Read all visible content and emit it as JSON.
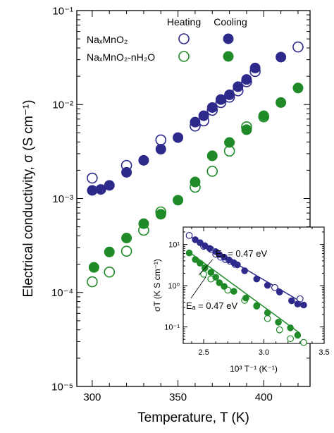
{
  "colors": {
    "na": "#2e2a8c",
    "hyd": "#1e8a28",
    "axis": "#000000"
  },
  "chart_data": [
    {
      "type": "scatter",
      "title": "",
      "xlabel": "Temperature, T (K)",
      "ylabel": "Electrical conductivity, σ (S cm⁻¹)",
      "xlim": [
        291,
        427
      ],
      "ylim_log10": [
        -5,
        -1
      ],
      "log_y": true,
      "x_ticks": [
        300,
        350,
        400
      ],
      "y_ticks": [
        {
          "exp": -5,
          "label": "10⁻⁵"
        },
        {
          "exp": -4,
          "label": "10⁻⁴"
        },
        {
          "exp": -3,
          "label": "10⁻³"
        },
        {
          "exp": -2,
          "label": "10⁻²"
        },
        {
          "exp": -1,
          "label": "10⁻¹"
        }
      ],
      "legend": {
        "placement": "top-left",
        "col_heating": "Heating",
        "col_cooling": "Cooling",
        "row1": "NaₓMnO₂",
        "row2": "NaₓMnO₂-nH₂O"
      },
      "series": [
        {
          "name": "NaₓMnO₂ Heating",
          "color": "na",
          "filled": false,
          "points": [
            [
              300,
              0.00165
            ],
            [
              320,
              0.00225
            ],
            [
              340,
              0.0042
            ],
            [
              360,
              0.0059
            ],
            [
              365,
              0.0067
            ],
            [
              370,
              0.0087
            ],
            [
              375,
              0.0105
            ],
            [
              380,
              0.012
            ],
            [
              385,
              0.014
            ],
            [
              390,
              0.0175
            ],
            [
              395,
              0.0225
            ],
            [
              420,
              0.041
            ]
          ]
        },
        {
          "name": "NaₓMnO₂ Cooling",
          "color": "na",
          "filled": true,
          "points": [
            [
              300,
              0.00122
            ],
            [
              305,
              0.00125
            ],
            [
              310,
              0.00138
            ],
            [
              320,
              0.0019
            ],
            [
              330,
              0.00255
            ],
            [
              340,
              0.00335
            ],
            [
              350,
              0.00445
            ],
            [
              360,
              0.0065
            ],
            [
              365,
              0.0076
            ],
            [
              370,
              0.0093
            ],
            [
              375,
              0.0113
            ],
            [
              380,
              0.0127
            ],
            [
              385,
              0.0155
            ],
            [
              390,
              0.0185
            ],
            [
              395,
              0.0245
            ],
            [
              410,
              0.032
            ]
          ]
        },
        {
          "name": "NaₓMnO₂-nH₂O Heating",
          "color": "hyd",
          "filled": false,
          "points": [
            [
              300,
              0.00013
            ],
            [
              310,
              0.000165
            ],
            [
              320,
              0.000275
            ],
            [
              330,
              0.00046
            ],
            [
              340,
              0.00072
            ],
            [
              360,
              0.00132
            ],
            [
              370,
              0.00195
            ],
            [
              380,
              0.0032
            ],
            [
              390,
              0.0058
            ],
            [
              400,
              0.0074
            ]
          ]
        },
        {
          "name": "NaₓMnO₂-nH₂O Cooling",
          "color": "hyd",
          "filled": true,
          "points": [
            [
              301,
              0.000185
            ],
            [
              310,
              0.00027
            ],
            [
              320,
              0.00038
            ],
            [
              330,
              0.00054
            ],
            [
              340,
              0.00068
            ],
            [
              350,
              0.00096
            ],
            [
              360,
              0.0015
            ],
            [
              370,
              0.00285
            ],
            [
              380,
              0.00395
            ],
            [
              390,
              0.0054
            ],
            [
              400,
              0.0076
            ],
            [
              410,
              0.0105
            ],
            [
              420,
              0.015
            ]
          ]
        }
      ]
    },
    {
      "type": "scatter",
      "title": "",
      "xlabel": "10³ T⁻¹ (K⁻¹)",
      "ylabel": "σT (K S cm⁻¹)",
      "xlim": [
        2.33,
        3.5
      ],
      "ylim_log10": [
        -1.4,
        1.42
      ],
      "log_y": true,
      "x_ticks": [
        2.5,
        3.0,
        3.5
      ],
      "x_tick_labels": [
        "2.5",
        "3.0",
        "3.5"
      ],
      "y_ticks": [
        {
          "exp": -1,
          "label": "10⁻¹"
        },
        {
          "exp": 0,
          "label": "10⁰"
        },
        {
          "exp": 1,
          "label": "10¹"
        }
      ],
      "annotations": [
        "Eₐ = 0.47 eV",
        "Eₐ = 0.47 eV"
      ],
      "fits": [
        {
          "color": "na",
          "x": [
            2.38,
            3.3
          ],
          "y": [
            16,
            0.42
          ]
        },
        {
          "color": "hyd",
          "x": [
            2.38,
            3.3
          ],
          "y": [
            6.5,
            0.07
          ]
        }
      ],
      "series": [
        {
          "name": "NaₓMnO₂ Heating",
          "color": "na",
          "filled": false,
          "points": [
            [
              2.38,
              16.5
            ],
            [
              2.5,
              9.0
            ],
            [
              2.56,
              7.6
            ],
            [
              2.6,
              5.8
            ],
            [
              2.64,
              4.9
            ],
            [
              2.68,
              4.3
            ],
            [
              2.72,
              3.9
            ],
            [
              2.76,
              3.3
            ],
            [
              3.09,
              0.9
            ],
            [
              3.3,
              0.48
            ]
          ]
        },
        {
          "name": "NaₓMnO₂ Cooling",
          "color": "na",
          "filled": true,
          "points": [
            [
              2.43,
              13.0
            ],
            [
              2.47,
              11.0
            ],
            [
              2.51,
              9.3
            ],
            [
              2.55,
              8.0
            ],
            [
              2.6,
              6.7
            ],
            [
              2.63,
              5.7
            ],
            [
              2.67,
              4.9
            ],
            [
              2.71,
              4.2
            ],
            [
              2.75,
              3.6
            ],
            [
              2.78,
              3.2
            ],
            [
              2.84,
              2.3
            ],
            [
              2.94,
              1.45
            ],
            [
              3.03,
              1.02
            ],
            [
              3.13,
              0.7
            ],
            [
              3.23,
              0.43
            ],
            [
              3.28,
              0.36
            ],
            [
              3.33,
              0.34
            ]
          ]
        },
        {
          "name": "NaₓMnO₂-nH₂O Heating",
          "color": "hyd",
          "filled": false,
          "points": [
            [
              2.5,
              1.9
            ],
            [
              2.56,
              1.45
            ],
            [
              2.7,
              0.78
            ],
            [
              2.84,
              0.44
            ],
            [
              2.94,
              0.32
            ],
            [
              3.03,
              0.16
            ],
            [
              3.13,
              0.085
            ],
            [
              3.22,
              0.052
            ],
            [
              3.33,
              0.042
            ]
          ]
        },
        {
          "name": "NaₓMnO₂-nH₂O Cooling",
          "color": "hyd",
          "filled": true,
          "points": [
            [
              2.38,
              6.2
            ],
            [
              2.43,
              4.3
            ],
            [
              2.47,
              3.5
            ],
            [
              2.51,
              2.7
            ],
            [
              2.56,
              2.1
            ],
            [
              2.6,
              1.6
            ],
            [
              2.63,
              1.18
            ],
            [
              2.67,
              0.96
            ],
            [
              2.75,
              0.73
            ],
            [
              2.85,
              0.5
            ],
            [
              2.94,
              0.33
            ],
            [
              3.03,
              0.22
            ],
            [
              3.12,
              0.13
            ],
            [
              3.22,
              0.095
            ],
            [
              3.28,
              0.063
            ]
          ]
        }
      ]
    }
  ]
}
